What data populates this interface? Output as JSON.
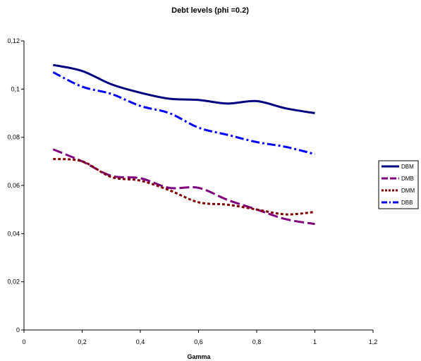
{
  "chart_data": {
    "type": "line",
    "title": "Debt levels (phi =0.2)",
    "xlabel": "Gamma",
    "ylabel": "",
    "xlim": [
      0,
      1.2
    ],
    "ylim": [
      0,
      0.12
    ],
    "x_ticks": [
      "0",
      "0,2",
      "0,4",
      "0,6",
      "0,8",
      "1",
      "1,2"
    ],
    "y_ticks": [
      "0",
      "0,02",
      "0,04",
      "0,06",
      "0,08",
      "0,1",
      "0,12"
    ],
    "grid": false,
    "legend_position": "right",
    "x": [
      0.1,
      0.2,
      0.3,
      0.4,
      0.5,
      0.6,
      0.7,
      0.8,
      0.9,
      1.0
    ],
    "series": [
      {
        "name": "DBM",
        "color": "#000080",
        "style": "solid",
        "values": [
          0.11,
          0.1075,
          0.102,
          0.0985,
          0.096,
          0.0955,
          0.094,
          0.095,
          0.092,
          0.09
        ]
      },
      {
        "name": "DMB",
        "color": "#800080",
        "style": "dashed",
        "values": [
          0.075,
          0.07,
          0.064,
          0.063,
          0.059,
          0.059,
          0.054,
          0.05,
          0.046,
          0.044
        ]
      },
      {
        "name": "DMM",
        "color": "#800000",
        "style": "dotted",
        "values": [
          0.071,
          0.07,
          0.0635,
          0.062,
          0.058,
          0.053,
          0.052,
          0.05,
          0.048,
          0.049
        ]
      },
      {
        "name": "DBB",
        "color": "#0000FF",
        "style": "dashdot",
        "values": [
          0.107,
          0.101,
          0.098,
          0.093,
          0.09,
          0.084,
          0.081,
          0.078,
          0.076,
          0.073
        ]
      }
    ]
  }
}
